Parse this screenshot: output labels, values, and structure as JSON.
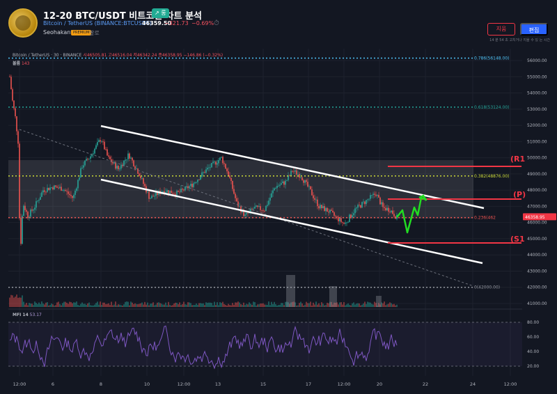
{
  "header": {
    "title": "12-20 BTC/USDT 비트코인 차트 분석",
    "trend_badge": "↗ 롱",
    "symbol_name": "Bitcoin / TetherUS",
    "symbol_code": "(BINANCE:BTCUSDT)",
    "price": "46359.50",
    "change": "−321.73",
    "change_pct": "−0.69%",
    "author": "Seohakant",
    "author_badge": "PREMIUM",
    "follow_label": "팔로",
    "delete_button": "지움",
    "edit_button": "편집",
    "note": "14 분 54 초 고치거나 지울 수 있 는 시간"
  },
  "legend": {
    "symbol": "Bitcoin / TetherUS · 30 · BINANCE",
    "ohlc": "시46505.81 고46516.04 저46342.24 종46358.95 −146.86 (−0.32%)",
    "volume_label": "볼륨",
    "volume_value": "143",
    "mfi_label": "MFI 14",
    "mfi_value": "53.17"
  },
  "price_axis": {
    "ticks": [
      "56000.00",
      "55000.00",
      "54000.00",
      "53000.00",
      "52000.00",
      "51000.00",
      "50000.00",
      "49000.00",
      "48000.00",
      "47000.00",
      "46000.00",
      "45000.00",
      "44000.00",
      "43000.00",
      "42000.00",
      "41000.00"
    ],
    "current_price_tag": "46358.95"
  },
  "mfi_axis": {
    "ticks": [
      "80.00",
      "60.00",
      "40.00",
      "20.00"
    ]
  },
  "time_axis": {
    "ticks": [
      "12:00",
      "6",
      "8",
      "10",
      "12:00",
      "13",
      "15",
      "17",
      "12:00",
      "20",
      "22",
      "24",
      "12:00"
    ]
  },
  "fib_labels": {
    "f0786": "0.786(56148.00)",
    "f0618": "0.618(53124.00)",
    "f0382": "0.382(48876.00)",
    "f0236": "0.236(462",
    "f0": "0(42000.00)"
  },
  "level_labels": {
    "r1": "(R1",
    "p": "(P)",
    "s1": "(S1"
  },
  "colors": {
    "background": "#131722",
    "up": "#26a69a",
    "down": "#ef5350",
    "level": "#f23645",
    "channel": "#ffffff",
    "forecast": "#22dd22",
    "mfi": "#7e57c2",
    "fib_blue": "#4fc3f7",
    "fib_green": "#26a69a",
    "fib_yellow": "#cddc39",
    "fib_red": "#ef5350"
  }
}
